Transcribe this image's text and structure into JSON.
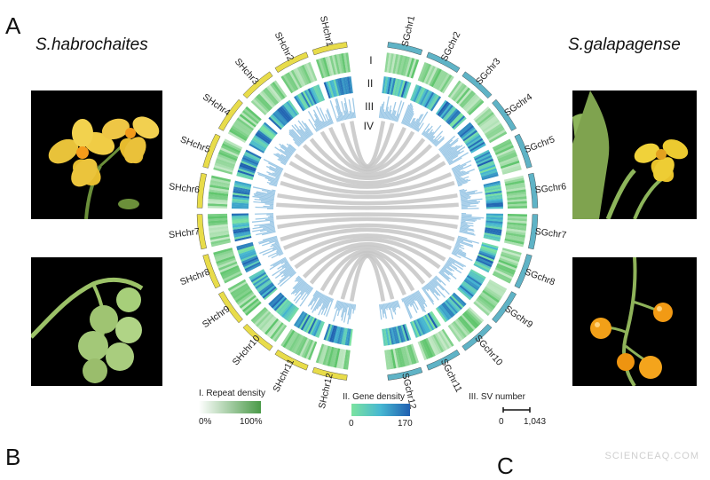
{
  "figure": {
    "panel_a": "A",
    "panel_b": "B",
    "panel_c": "C",
    "left_species": "S.habrochaites",
    "right_species": "S.galapagense",
    "watermark": "SCIENCEAQ.COM"
  },
  "tracks": [
    "I",
    "II",
    "III",
    "IV"
  ],
  "left_chromosomes": [
    "SHchr1",
    "SHchr2",
    "SHchr3",
    "SHchr4",
    "SHchr5",
    "SHchr6",
    "SHchr7",
    "SHchr8",
    "SHchr9",
    "SHchr10",
    "SHchr11",
    "SHchr12"
  ],
  "right_chromosomes": [
    "SGchr1",
    "SGchr2",
    "SGchr3",
    "SGchr4",
    "SGchr5",
    "SGchr6",
    "SGchr7",
    "SGchr8",
    "SGchr9",
    "SGchr10",
    "SGchr11",
    "SGchr12"
  ],
  "legend": {
    "repeat": {
      "title": "I. Repeat density",
      "min": "0%",
      "max": "100%"
    },
    "gene": {
      "title": "II. Gene density",
      "min": "0",
      "max": "170"
    },
    "sv": {
      "title": "III. SV number",
      "min": "0",
      "max": "1,043"
    }
  },
  "colors": {
    "left_karyotype": "#e8dc4a",
    "right_karyotype": "#5fb3c6",
    "repeat": "#5cc46a",
    "gene_low": "#7ce3a0",
    "gene_high": "#1f5fb0",
    "sv": "#9cc8e6",
    "links": "#c6c6c6"
  }
}
